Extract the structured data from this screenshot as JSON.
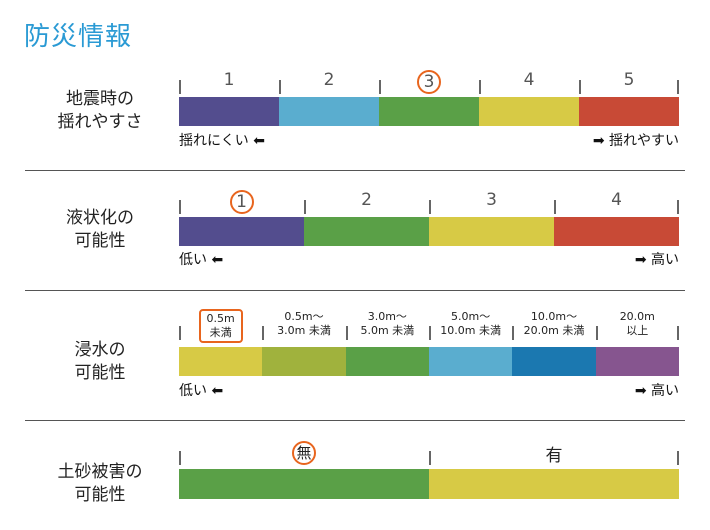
{
  "title": "防災情報",
  "sections": [
    {
      "label": [
        "地震時の",
        "揺れやすさ"
      ],
      "scale": [
        "1",
        "2",
        "3",
        "4",
        "5"
      ],
      "selected": "3",
      "colors": [
        "#534d8e",
        "#5aadcf",
        "#5aa047",
        "#d7ca45",
        "#c84a36"
      ],
      "low": "揺れにくい",
      "high": "揺れやすい"
    },
    {
      "label": [
        "液状化の",
        "可能性"
      ],
      "scale": [
        "1",
        "2",
        "3",
        "4"
      ],
      "selected": "1",
      "colors": [
        "#534d8e",
        "#5aa047",
        "#d7ca45",
        "#c84a36"
      ],
      "low": "低い",
      "high": "高い"
    },
    {
      "label": [
        "浸水の",
        "可能性"
      ],
      "scale": [
        [
          "0.5m",
          "未満"
        ],
        [
          "0.5m〜",
          "3.0m 未満"
        ],
        [
          "3.0m〜",
          "5.0m 未満"
        ],
        [
          "5.0m〜",
          "10.0m 未満"
        ],
        [
          "10.0m〜",
          "20.0m 未満"
        ],
        [
          "20.0m",
          "以上"
        ]
      ],
      "selected": "0.5m 未満",
      "colors": [
        "#d7ca45",
        "#a0b23d",
        "#5aa047",
        "#5aadcf",
        "#1b78b0",
        "#86558f"
      ],
      "low": "低い",
      "high": "高い"
    },
    {
      "label": [
        "土砂被害の",
        "可能性"
      ],
      "scale": [
        "無",
        "有"
      ],
      "selected": "無",
      "colors": [
        "#5aa047",
        "#d7ca45"
      ]
    }
  ],
  "icons": {
    "left_arrow": "arrow-left-icon",
    "right_arrow": "arrow-right-icon"
  }
}
